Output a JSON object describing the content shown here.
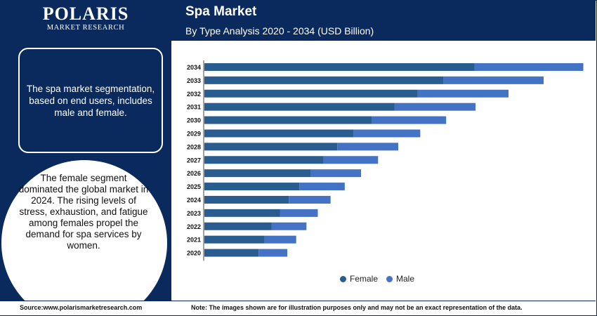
{
  "brand": {
    "name": "POLARIS",
    "tagline": "MARKET RESEARCH"
  },
  "sidebar": {
    "box_text": "The spa market segmentation, based on end users, includes male and female.",
    "circle_text": "The female segment dominated the global market in 2024. The rising levels of stress, exhaustion, and fatigue among females propel the demand for spa services by women."
  },
  "footer": {
    "source": "Source:www.polarismarketresearch.com",
    "note": "Note: The images shown are for illustration purposes only and may not be an exact representation of the data."
  },
  "colors": {
    "navy": "#0a2a5e",
    "female": "#2a5d8f",
    "male": "#4472c4"
  },
  "chart_data": {
    "type": "bar",
    "orientation": "horizontal",
    "stacked": true,
    "title": "Spa Market",
    "subtitle": "By Type Analysis 2020 - 2034 (USD Billion)",
    "categories": [
      "2034",
      "2033",
      "2032",
      "2031",
      "2030",
      "2029",
      "2028",
      "2027",
      "2026",
      "2025",
      "2024",
      "2023",
      "2022",
      "2021",
      "2020"
    ],
    "series": [
      {
        "name": "Female",
        "values": [
          76.2,
          67.5,
          60.2,
          53.6,
          47.3,
          42.0,
          37.5,
          33.6,
          30.0,
          26.8,
          23.8,
          21.3,
          19.0,
          17.0,
          15.3
        ]
      },
      {
        "name": "Male",
        "values": [
          30.7,
          28.2,
          25.6,
          22.9,
          20.9,
          18.9,
          17.2,
          15.4,
          14.2,
          12.8,
          11.8,
          10.7,
          9.8,
          8.9,
          8.1
        ]
      }
    ],
    "xlim": [
      0,
      107
    ],
    "axis_tick_labels_x": false,
    "grid": false,
    "legend_position": "bottom-center"
  }
}
